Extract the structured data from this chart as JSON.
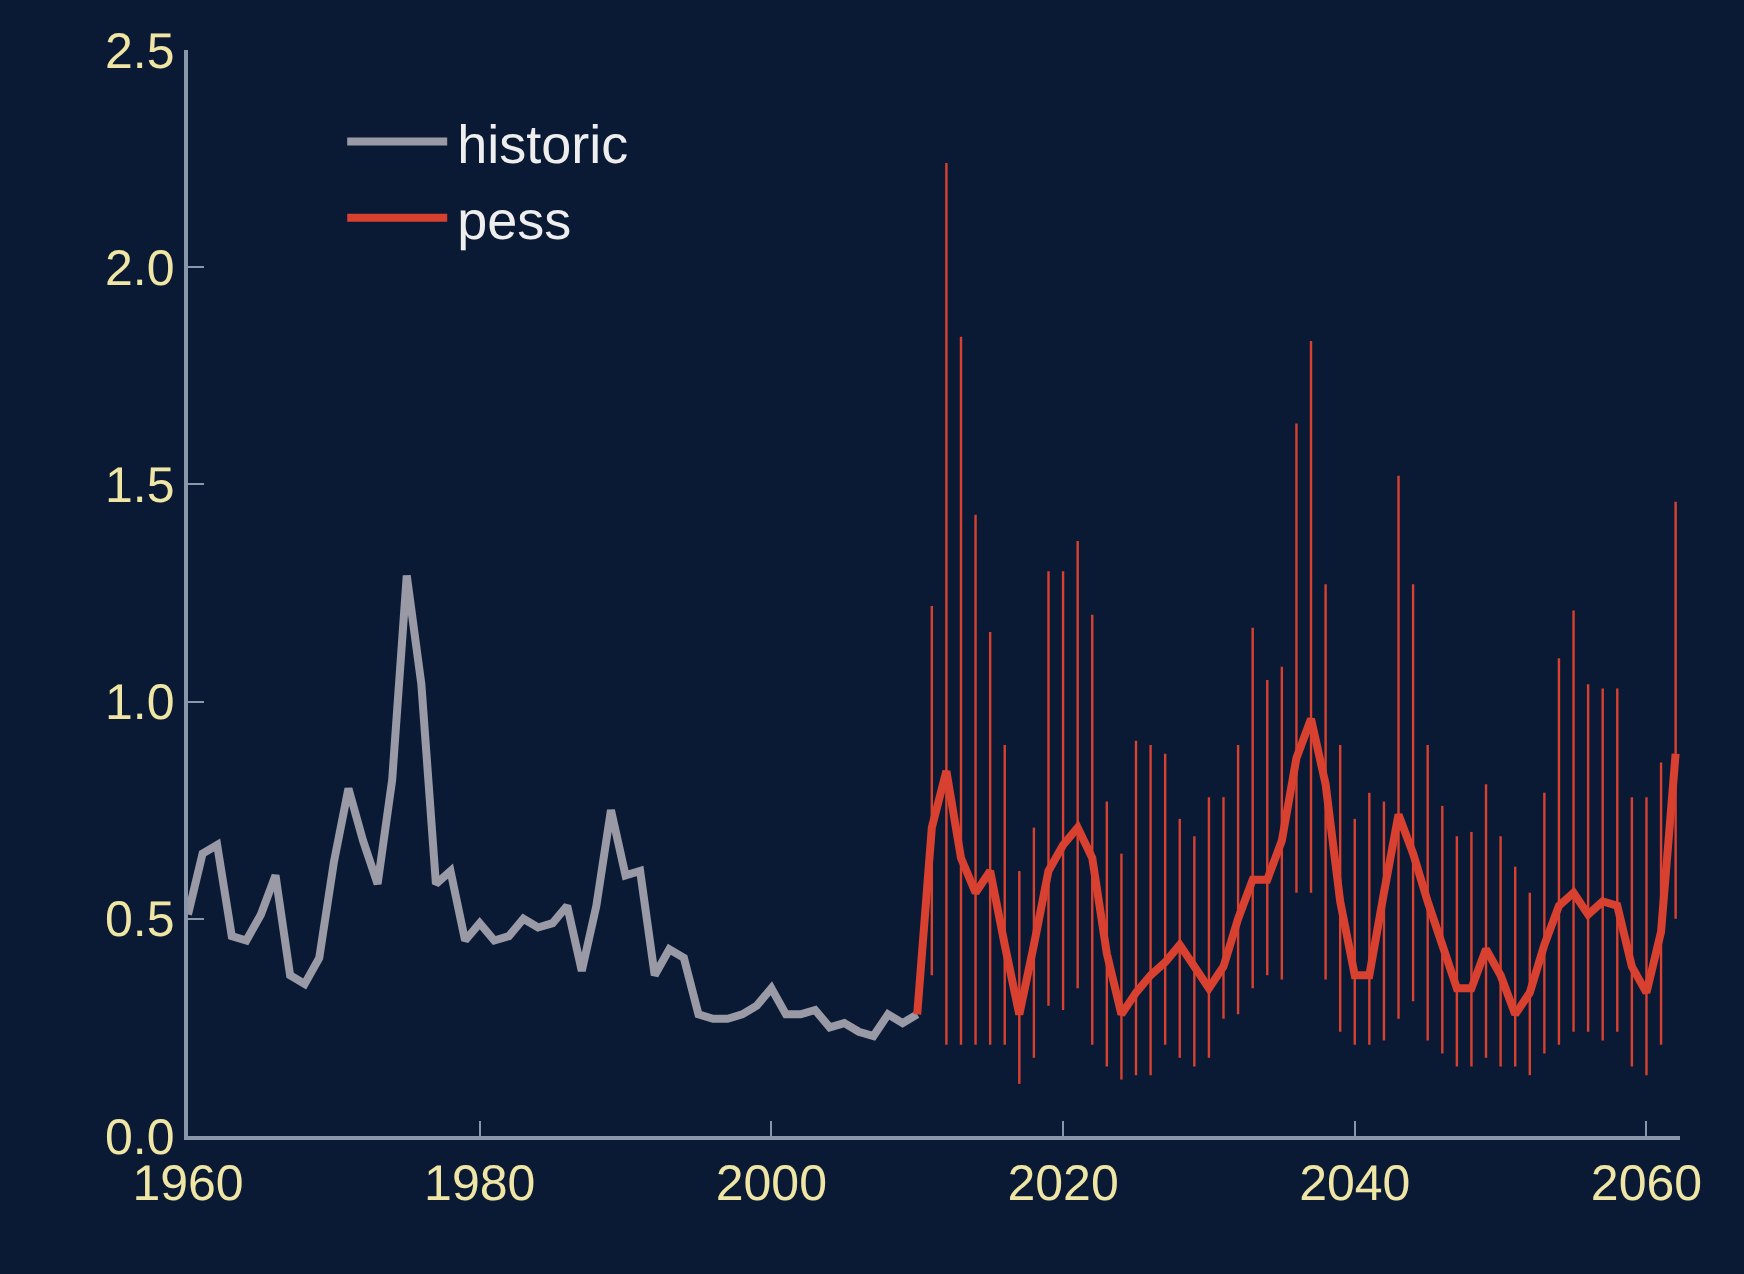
{
  "chart_data": {
    "type": "line",
    "xlim": [
      1960,
      2062.3
    ],
    "xticks": [
      1960,
      1980,
      2000,
      2020,
      2040,
      2060
    ],
    "ylim": [
      0,
      2.5
    ],
    "yticks": [
      {
        "value": 0,
        "label": "0.0"
      },
      0.5,
      {
        "value": 1,
        "label": "1.0"
      },
      1.5,
      {
        "value": 2,
        "label": "2.0"
      },
      2.5
    ],
    "grid": false,
    "legend": "top left",
    "marker": "none",
    "line_style": "solid",
    "series": [
      {
        "name": "historic",
        "color": "#9a9aa6",
        "x": [
          1960,
          1961,
          1962,
          1963,
          1964,
          1965,
          1966,
          1967,
          1968,
          1969,
          1970,
          1971,
          1972,
          1973,
          1974,
          1975,
          1976,
          1977,
          1978,
          1979,
          1980,
          1981,
          1982,
          1983,
          1984,
          1985,
          1986,
          1987,
          1988,
          1989,
          1990,
          1991,
          1992,
          1993,
          1994,
          1995,
          1996,
          1997,
          1998,
          1999,
          2000,
          2001,
          2002,
          2003,
          2004,
          2005,
          2006,
          2007,
          2008,
          2009,
          2010
        ],
        "values": [
          0.51,
          0.65,
          0.67,
          0.46,
          0.45,
          0.51,
          0.6,
          0.37,
          0.35,
          0.41,
          0.63,
          0.8,
          0.68,
          0.58,
          0.82,
          1.29,
          1.04,
          0.58,
          0.61,
          0.45,
          0.49,
          0.45,
          0.46,
          0.5,
          0.48,
          0.49,
          0.53,
          0.38,
          0.53,
          0.75,
          0.6,
          0.61,
          0.37,
          0.43,
          0.41,
          0.28,
          0.27,
          0.27,
          0.28,
          0.3,
          0.34,
          0.28,
          0.28,
          0.29,
          0.25,
          0.26,
          0.24,
          0.23,
          0.28,
          0.26,
          0.28
        ]
      },
      {
        "name": "pess",
        "color": "#d8412f",
        "x": [
          2010,
          2011,
          2012,
          2013,
          2014,
          2015,
          2016,
          2017,
          2018,
          2019,
          2020,
          2021,
          2022,
          2023,
          2024,
          2025,
          2026,
          2027,
          2028,
          2029,
          2030,
          2031,
          2032,
          2033,
          2034,
          2035,
          2036,
          2037,
          2038,
          2039,
          2040,
          2041,
          2042,
          2043,
          2044,
          2045,
          2046,
          2047,
          2048,
          2049,
          2050,
          2051,
          2052,
          2053,
          2054,
          2055,
          2056,
          2057,
          2058,
          2059,
          2060,
          2061,
          2062
        ],
        "values": [
          0.28,
          0.71,
          0.84,
          0.64,
          0.56,
          0.61,
          0.44,
          0.28,
          0.44,
          0.61,
          0.67,
          0.71,
          0.64,
          0.42,
          0.28,
          0.33,
          0.37,
          0.4,
          0.44,
          0.39,
          0.34,
          0.39,
          0.5,
          0.59,
          0.59,
          0.68,
          0.87,
          0.96,
          0.81,
          0.54,
          0.37,
          0.37,
          0.56,
          0.74,
          0.65,
          0.54,
          0.44,
          0.34,
          0.34,
          0.43,
          0.37,
          0.28,
          0.33,
          0.44,
          0.53,
          0.56,
          0.51,
          0.54,
          0.53,
          0.39,
          0.33,
          0.47,
          0.88
        ],
        "errors": [
          null,
          [
            0.37,
            1.22
          ],
          [
            0.21,
            2.24
          ],
          [
            0.21,
            1.84
          ],
          [
            0.21,
            1.43
          ],
          [
            0.21,
            1.16
          ],
          [
            0.21,
            0.9
          ],
          [
            0.12,
            0.61
          ],
          [
            0.18,
            0.71
          ],
          [
            0.3,
            1.3
          ],
          [
            0.29,
            1.3
          ],
          [
            0.34,
            1.37
          ],
          [
            0.21,
            1.2
          ],
          [
            0.16,
            0.77
          ],
          [
            0.13,
            0.65
          ],
          [
            0.14,
            0.91
          ],
          [
            0.14,
            0.9
          ],
          [
            0.21,
            0.88
          ],
          [
            0.18,
            0.73
          ],
          [
            0.16,
            0.69
          ],
          [
            0.18,
            0.78
          ],
          [
            0.27,
            0.78
          ],
          [
            0.28,
            0.9
          ],
          [
            0.34,
            1.17
          ],
          [
            0.37,
            1.05
          ],
          [
            0.36,
            1.08
          ],
          [
            0.56,
            1.64
          ],
          [
            0.56,
            1.83
          ],
          [
            0.36,
            1.27
          ],
          [
            0.24,
            0.9
          ],
          [
            0.21,
            0.73
          ],
          [
            0.21,
            0.79
          ],
          [
            0.22,
            0.77
          ],
          [
            0.27,
            1.52
          ],
          [
            0.31,
            1.27
          ],
          [
            0.22,
            0.9
          ],
          [
            0.19,
            0.76
          ],
          [
            0.16,
            0.69
          ],
          [
            0.16,
            0.7
          ],
          [
            0.18,
            0.81
          ],
          [
            0.16,
            0.69
          ],
          [
            0.16,
            0.62
          ],
          [
            0.14,
            0.56
          ],
          [
            0.19,
            0.79
          ],
          [
            0.21,
            1.1
          ],
          [
            0.24,
            1.21
          ],
          [
            0.24,
            1.04
          ],
          [
            0.22,
            1.03
          ],
          [
            0.24,
            1.03
          ],
          [
            0.16,
            0.78
          ],
          [
            0.14,
            0.78
          ],
          [
            0.21,
            0.86
          ],
          [
            0.5,
            1.46
          ]
        ]
      }
    ]
  }
}
